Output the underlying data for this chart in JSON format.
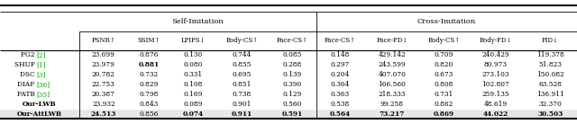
{
  "section_headers": [
    "Self-Imitation",
    "Cross-Imitation"
  ],
  "col_headers": [
    "",
    "PSNR↑",
    "SSIM↑",
    "LPIPS↓",
    "Body-CS↑",
    "Face-CS↑",
    "Face-CS↑",
    "Face-FD↓",
    "Body-CS↑",
    "Body-FD↓",
    "FID↓"
  ],
  "rows": [
    {
      "name": "PG2",
      "ref": "[2]",
      "ref_color": "#00aa00",
      "values": [
        "23.699",
        "0.876",
        "0.130",
        "0.744",
        "0.085",
        "0.148",
        "429.142",
        "0.709",
        "240.429",
        "119.378"
      ],
      "bold": [
        false,
        false,
        false,
        false,
        false,
        false,
        false,
        false,
        false,
        false
      ],
      "name_bold": false
    },
    {
      "name": "SHUP",
      "ref": "[1]",
      "ref_color": "#00aa00",
      "values": [
        "23.979",
        "0.881",
        "0.080",
        "0.855",
        "0.288",
        "0.297",
        "243.599",
        "0.820",
        "80.973",
        "51.823"
      ],
      "bold": [
        false,
        true,
        false,
        false,
        false,
        false,
        false,
        false,
        false,
        false
      ],
      "name_bold": false
    },
    {
      "name": "DSC",
      "ref": "[3]",
      "ref_color": "#00aa00",
      "values": [
        "20.782",
        "0.732",
        "0.331",
        "0.695",
        "0.139",
        "0.204",
        "407.070",
        "0.673",
        "273.103",
        "150.082"
      ],
      "bold": [
        false,
        false,
        false,
        false,
        false,
        false,
        false,
        false,
        false,
        false
      ],
      "name_bold": false
    },
    {
      "name": "DIAF",
      "ref": "[36]",
      "ref_color": "#00aa00",
      "values": [
        "22.753",
        "0.829",
        "0.108",
        "0.851",
        "0.390",
        "0.364",
        "166.560",
        "0.808",
        "102.807",
        "63.528"
      ],
      "bold": [
        false,
        false,
        false,
        false,
        false,
        false,
        false,
        false,
        false,
        false
      ],
      "name_bold": false
    },
    {
      "name": "PATB",
      "ref": "[35]",
      "ref_color": "#00aa00",
      "values": [
        "20.387",
        "0.798",
        "0.169",
        "0.738",
        "0.129",
        "0.363",
        "218.333",
        "0.731",
        "259.135",
        "136.911"
      ],
      "bold": [
        false,
        false,
        false,
        false,
        false,
        false,
        false,
        false,
        false,
        false
      ],
      "name_bold": false
    },
    {
      "name": "Our-LWB",
      "ref": "",
      "ref_color": null,
      "values": [
        "23.932",
        "0.843",
        "0.089",
        "0.901",
        "0.560",
        "0.538",
        "99.258",
        "0.862",
        "48.619",
        "32.370"
      ],
      "bold": [
        false,
        false,
        false,
        false,
        false,
        false,
        false,
        false,
        false,
        false
      ],
      "name_bold": true
    },
    {
      "name": "Our-AttLWB",
      "ref": "",
      "ref_color": null,
      "values": [
        "24.513",
        "0.856",
        "0.074",
        "0.911",
        "0.591",
        "0.564",
        "73.217",
        "0.869",
        "44.022",
        "30.503"
      ],
      "bold": [
        true,
        false,
        true,
        true,
        true,
        true,
        true,
        true,
        true,
        true
      ],
      "name_bold": true
    }
  ],
  "figsize": [
    6.4,
    1.38
  ],
  "dpi": 100
}
